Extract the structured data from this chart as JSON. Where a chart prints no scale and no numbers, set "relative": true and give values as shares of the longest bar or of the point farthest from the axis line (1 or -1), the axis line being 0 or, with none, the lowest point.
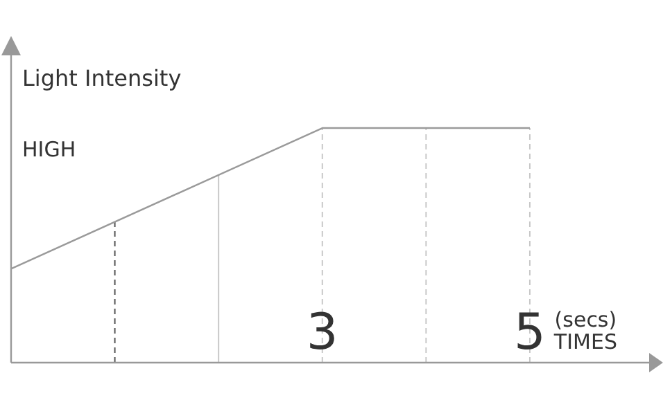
{
  "chart_data": {
    "type": "line",
    "relative": true,
    "ylabel": "Light Intensity",
    "xlabel": "(secs)\nTIMES",
    "annotations": [
      "HIGH"
    ],
    "x": [
      0,
      3,
      5
    ],
    "values": [
      0.4,
      1,
      1
    ],
    "color": "#9a9a9a",
    "marker": "none",
    "line_style": "solid",
    "xlim": [
      0,
      6.15
    ],
    "xticks": [
      3,
      5
    ],
    "ref_lines": [
      {
        "axis": "x",
        "value": 1,
        "color": "#555555",
        "line_style": "dashed"
      },
      {
        "axis": "x",
        "value": 2,
        "color": "#c8c8c8",
        "line_style": "solid"
      },
      {
        "axis": "x",
        "value": 3,
        "color": "#c8c8c8",
        "line_style": "dashed"
      },
      {
        "axis": "x",
        "value": 4,
        "color": "#c8c8c8",
        "line_style": "dashed"
      },
      {
        "axis": "x",
        "value": 5,
        "color": "#c8c8c8",
        "line_style": "dashed"
      }
    ],
    "legend": false
  }
}
